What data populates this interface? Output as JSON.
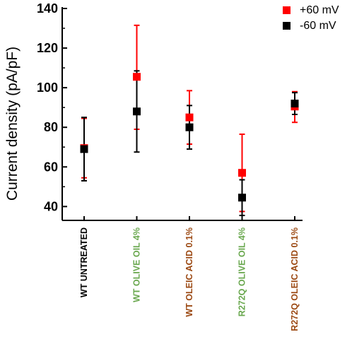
{
  "chart_data": {
    "type": "scatter",
    "ylabel": "Current density (pA/pF)",
    "xlabel": "",
    "ylim": [
      33,
      140
    ],
    "yticks": [
      40,
      60,
      80,
      100,
      120,
      140
    ],
    "categories": [
      "WT UNTREATED",
      "WT OLIVE OIL 4%",
      "WT OLEIC ACID 0.1%",
      "R272Q OLIVE OIL 4%",
      "R272Q OLEIC ACID 0.1%"
    ],
    "category_colors": [
      "#000000",
      "#6aa84f",
      "#9c4a14",
      "#6aa84f",
      "#9c4a14"
    ],
    "legend_position": "top-right",
    "grid": false,
    "series": [
      {
        "name": "+60 mV",
        "color": "#ff0000",
        "values": [
          69.5,
          105.5,
          85,
          57,
          90.5
        ],
        "err_low": [
          54.5,
          79,
          71.5,
          37.5,
          82.5
        ],
        "err_high": [
          84.5,
          131.5,
          98.5,
          76.5,
          98
        ]
      },
      {
        "name": "-60 mV",
        "color": "#000000",
        "values": [
          69,
          88,
          80,
          44.5,
          92
        ],
        "err_low": [
          53,
          67.5,
          69,
          35.5,
          86.5
        ],
        "err_high": [
          85,
          108.5,
          91,
          53.5,
          97.5
        ]
      }
    ]
  }
}
